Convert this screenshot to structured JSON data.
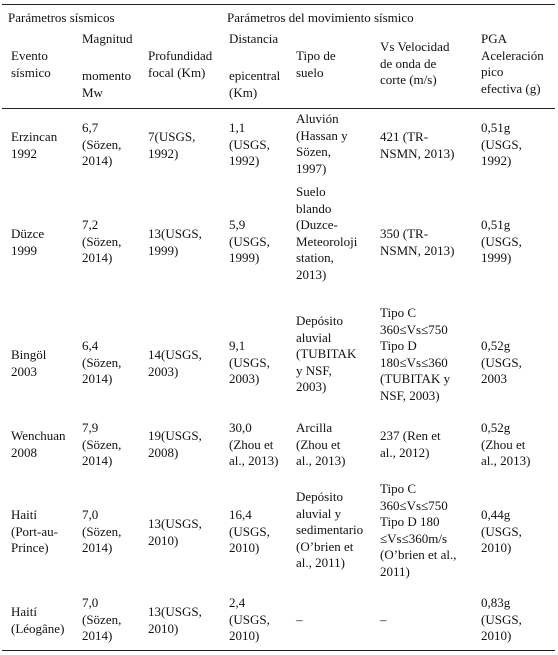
{
  "table": {
    "group_headers": {
      "seismic": "Parámetros sísmicos",
      "motion": "Parámetros del movimiento sísmico"
    },
    "columns": {
      "event": "Evento\nsísmico",
      "magnitude_top": "Magnitud",
      "magnitude_bottom": "momento\n Mw",
      "depth": "Profundidad\nfocal (Km)",
      "distance_top": "Distancia",
      "distance_bottom": "epicentral\n (Km)",
      "soil": "Tipo de\nsuelo",
      "vs": "Vs Velocidad\nde onda de\ncorte (m/s)",
      "pga": "PGA\nAceleración\n pico\nefectiva (g)"
    },
    "rows": [
      {
        "event": "Erzincan\n1992",
        "magnitude": "6,7\n(Sözen,\n2014)",
        "depth": "7(USGS,\n1992)",
        "distance": "1,1\n(USGS,\n1992)",
        "soil": "Aluvión\n(Hassan y\nSözen,\n1997)",
        "vs": "421 (TR-\nNSMN, 2013)",
        "pga": "0,51g\n(USGS,\n1992)"
      },
      {
        "event": "Düzce\n1999",
        "magnitude": "7,2\n(Sözen,\n2014)",
        "depth": "13(USGS,\n1999)",
        "distance": "5,9\n(USGS,\n1999)",
        "soil": "Suelo\nblando\n(Duzce-\nMeteoroloji\nstation,\n2013)",
        "vs": "350 (TR-\nNSMN, 2013)",
        "pga": "0,51g\n(USGS,\n1999)"
      },
      {
        "event": "Bingöl\n2003",
        "magnitude": "6,4\n(Sözen,\n2014)",
        "depth": "14(USGS,\n2003)",
        "distance": "9,1\n(USGS,\n2003)",
        "soil": "Depósito\naluvial\n(TUBITAK\ny NSF,\n2003)",
        "vs": "Tipo C\n360≤Vs≤750\nTipo D\n180≤Vs≤360\n(TUBITAK y\nNSF, 2003)",
        "pga": "0,52g\n(USGS,\n2003"
      },
      {
        "event": "Wenchuan\n 2008",
        "magnitude": "7,9\n(Sözen,\n2014)",
        "depth": "19(USGS,\n2008)",
        "distance": "30,0\n(Zhou et\nal., 2013)",
        "soil": "Arcilla\n(Zhou et\nal., 2013)",
        "vs": "237 (Ren et\nal., 2012)",
        "pga": "0,52g\n(Zhou et\nal., 2013)"
      },
      {
        "event": "Haití\n(Port-au-\nPrince)",
        "magnitude": "7,0\n(Sözen,\n2014)",
        "depth": "13(USGS,\n2010)",
        "distance": "16,4\n(USGS,\n2010)",
        "soil": "Depósito\naluvial y\nsedimentario\n (O’brien et\nal., 2011)",
        "vs": "Tipo C\n360≤Vs≤750\nTipo D 180\n≤Vs≤360m/s\n(O’brien et al.,\n2011)",
        "pga": "0,44g\n(USGS,\n2010)"
      },
      {
        "event": "Haití\n(Léogâne)",
        "magnitude": "7,0\n(Sözen,\n2014)",
        "depth": "13(USGS,\n2010)",
        "distance": "2,4\n(USGS,\n2010)",
        "soil": "–",
        "vs": "–",
        "pga": "0,83g\n(USGS,\n2010)"
      }
    ]
  }
}
